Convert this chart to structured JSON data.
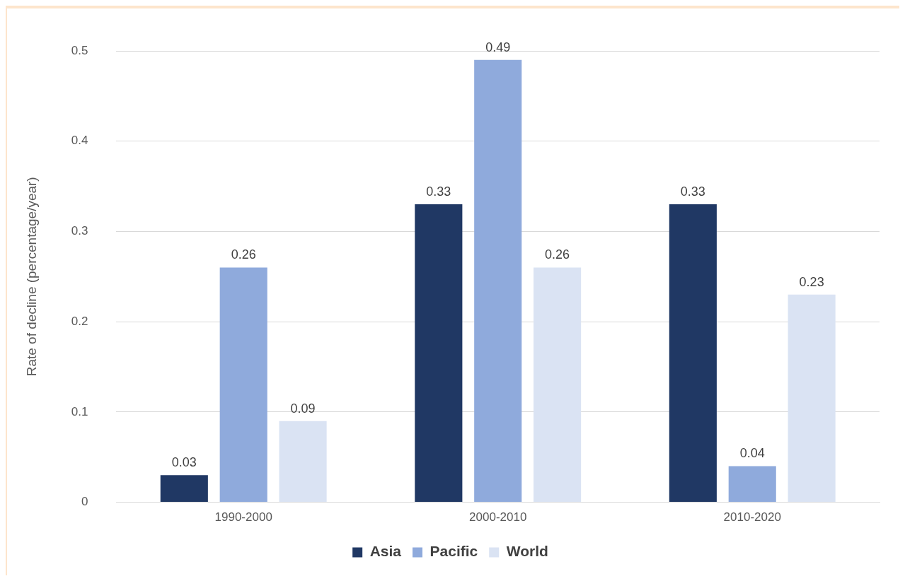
{
  "chart_data": {
    "type": "bar",
    "ylabel": "Rate of decline (percentage/year)",
    "categories": [
      "1990-2000",
      "2000-2010",
      "2010-2020"
    ],
    "series": [
      {
        "name": "Asia",
        "color": "#203864",
        "values": [
          0.03,
          0.33,
          0.33
        ]
      },
      {
        "name": "Pacific",
        "color": "#8faadc",
        "values": [
          0.26,
          0.49,
          0.04
        ]
      },
      {
        "name": "World",
        "color": "#dae3f3",
        "values": [
          0.09,
          0.26,
          0.23
        ]
      }
    ],
    "ylim": [
      0,
      0.5
    ],
    "yticks": [
      0,
      0.1,
      0.2,
      0.3,
      0.4,
      0.5
    ],
    "grid": "y",
    "legend": "bottom",
    "data_labels": true
  }
}
